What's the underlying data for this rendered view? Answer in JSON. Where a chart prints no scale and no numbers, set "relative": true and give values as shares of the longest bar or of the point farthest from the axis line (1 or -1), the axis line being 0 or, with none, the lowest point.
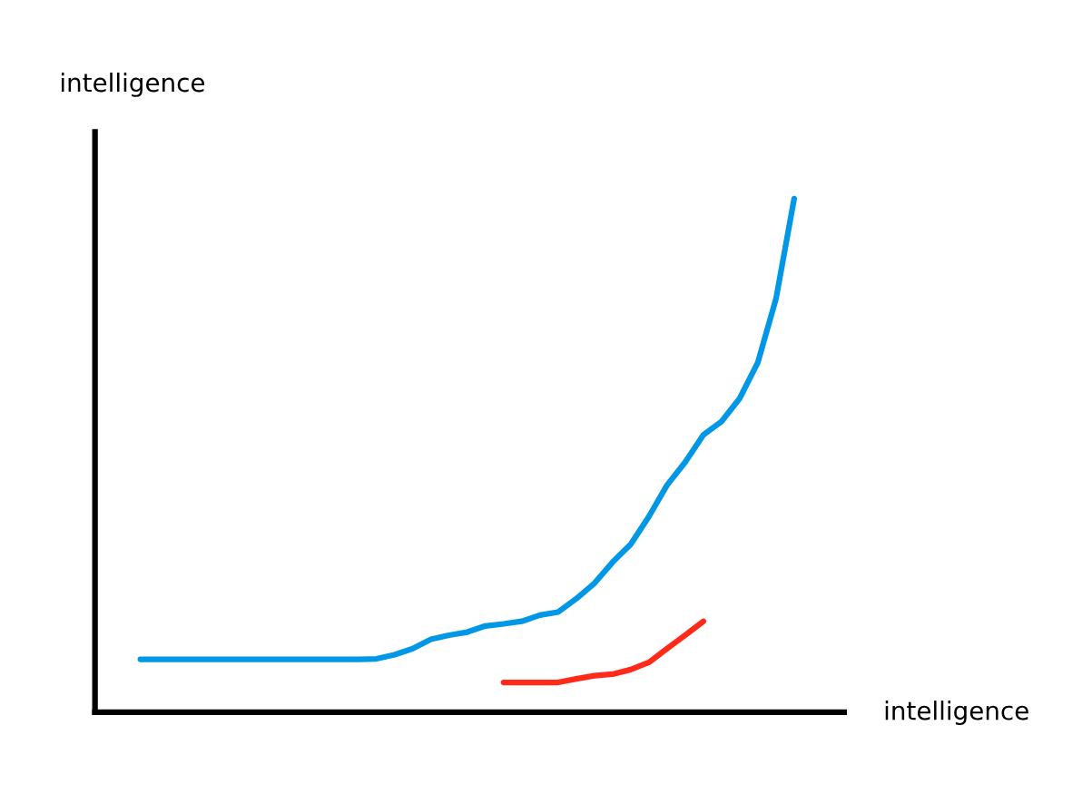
{
  "chart_data": {
    "type": "line",
    "relative": true,
    "xlabel": "intelligence",
    "ylabel": "intelligence",
    "categories": [
      null,
      null,
      null,
      null,
      null,
      null,
      null,
      null,
      null,
      null,
      null,
      null,
      null,
      null,
      null,
      null,
      null,
      null,
      null,
      null,
      null,
      null,
      null,
      null,
      null,
      null,
      null,
      null,
      null,
      null,
      null,
      null,
      null,
      null,
      null,
      null,
      null,
      null,
      null,
      null,
      null
    ],
    "series": [
      {
        "color": "#0097e6",
        "values": [
          null,
          null,
          0.103,
          0.103,
          0.103,
          0.103,
          0.103,
          0.103,
          0.103,
          0.103,
          0.103,
          0.103,
          0.103,
          0.103,
          0.103,
          0.104,
          0.112,
          0.124,
          0.142,
          0.15,
          0.156,
          0.168,
          0.172,
          0.177,
          0.189,
          0.195,
          0.221,
          0.251,
          0.292,
          0.327,
          0.381,
          0.442,
          0.487,
          0.54,
          0.566,
          0.611,
          0.681,
          0.805,
          1.0,
          null,
          null
        ]
      },
      {
        "color": "#ff2a1a",
        "values": [
          null,
          null,
          null,
          null,
          null,
          null,
          null,
          null,
          null,
          null,
          null,
          null,
          null,
          null,
          null,
          null,
          null,
          null,
          null,
          null,
          null,
          null,
          0.058,
          0.058,
          0.058,
          0.058,
          0.065,
          0.071,
          0.074,
          0.083,
          0.097,
          0.124,
          0.15,
          0.177,
          null,
          null,
          null,
          null,
          null,
          null,
          null
        ]
      }
    ]
  }
}
